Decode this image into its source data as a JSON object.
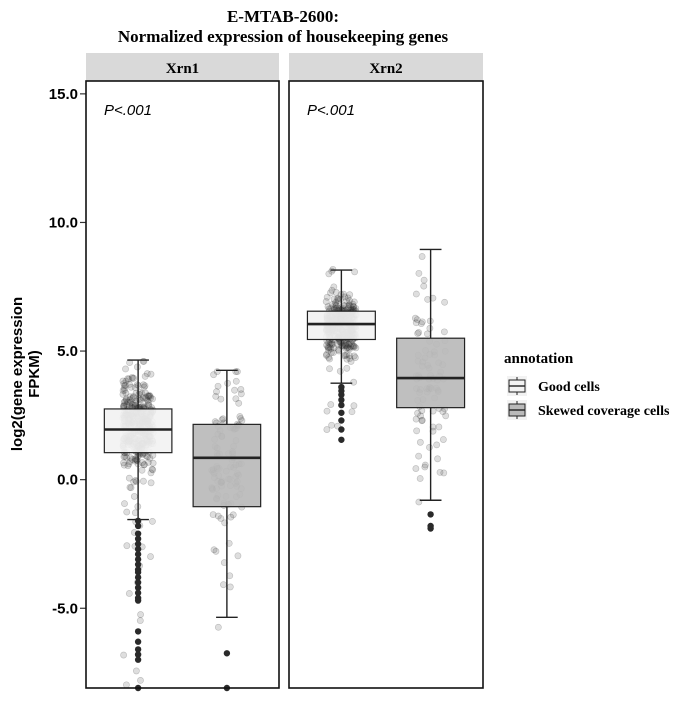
{
  "chart_data": {
    "type": "box",
    "title_line1": "E-MTAB-2600:",
    "title_line2": "Normalized expression of housekeeping genes",
    "ylabel_line1": "log2(gene expression",
    "ylabel_line2": "FPKM)",
    "ylim": [
      -8.1,
      15.5
    ],
    "yticks": [
      {
        "value": 15,
        "label": "15.0"
      },
      {
        "value": 10,
        "label": "10.0"
      },
      {
        "value": 5,
        "label": "5.0"
      },
      {
        "value": 0,
        "label": "0.0"
      },
      {
        "value": -5,
        "label": "-5.0"
      }
    ],
    "legend": {
      "title": "annotation",
      "placement": "right",
      "entries": [
        {
          "label": "Good cells",
          "fill": "#f2f2f2"
        },
        {
          "label": "Skewed coverage cells",
          "fill": "#bababa"
        }
      ]
    },
    "panels": [
      {
        "strip": "Xrn1",
        "pvalue": "P<.001",
        "boxes": [
          {
            "group": "Good cells",
            "fill": "#f2f2f2",
            "q1": 1.05,
            "median": 1.95,
            "q3": 2.75,
            "whisker_low": -1.55,
            "whisker_high": 4.65,
            "outliers": [
              -1.6,
              -1.8,
              -2.1,
              -2.3,
              -2.5,
              -2.7,
              -2.9,
              -3.1,
              -3.3,
              -3.5,
              -3.6,
              -3.8,
              -4.0,
              -4.2,
              -4.4,
              -4.6,
              -4.7,
              -5.9,
              -6.3,
              -6.6,
              -6.8,
              -7.0,
              -8.1
            ],
            "jitter": {
              "n": 420,
              "min": -8.1,
              "max": 4.6,
              "center": 2.1,
              "spread": 0.9
            }
          },
          {
            "group": "Skewed coverage cells",
            "fill": "#bababa",
            "q1": -1.05,
            "median": 0.85,
            "q3": 2.15,
            "whisker_low": -5.35,
            "whisker_high": 4.25,
            "outliers": [
              -6.75,
              -8.1
            ],
            "jitter": {
              "n": 110,
              "min": -6.8,
              "max": 4.2,
              "center": 0.8,
              "spread": 1.9
            }
          }
        ]
      },
      {
        "strip": "Xrn2",
        "pvalue": "P<.001",
        "boxes": [
          {
            "group": "Good cells",
            "fill": "#f2f2f2",
            "q1": 5.45,
            "median": 6.05,
            "q3": 6.55,
            "whisker_low": 3.75,
            "whisker_high": 8.15,
            "outliers": [
              3.6,
              3.45,
              3.3,
              3.1,
              2.9,
              2.6,
              2.3,
              1.95,
              1.55
            ],
            "jitter": {
              "n": 380,
              "min": 1.5,
              "max": 8.2,
              "center": 6.0,
              "spread": 0.55
            }
          },
          {
            "group": "Skewed coverage cells",
            "fill": "#bababa",
            "q1": 2.8,
            "median": 3.95,
            "q3": 5.5,
            "whisker_low": -0.8,
            "whisker_high": 8.95,
            "outliers": [
              -1.35,
              -1.8,
              -1.9
            ],
            "jitter": {
              "n": 90,
              "min": -1.9,
              "max": 8.9,
              "center": 4.0,
              "spread": 1.9
            }
          }
        ]
      }
    ]
  }
}
